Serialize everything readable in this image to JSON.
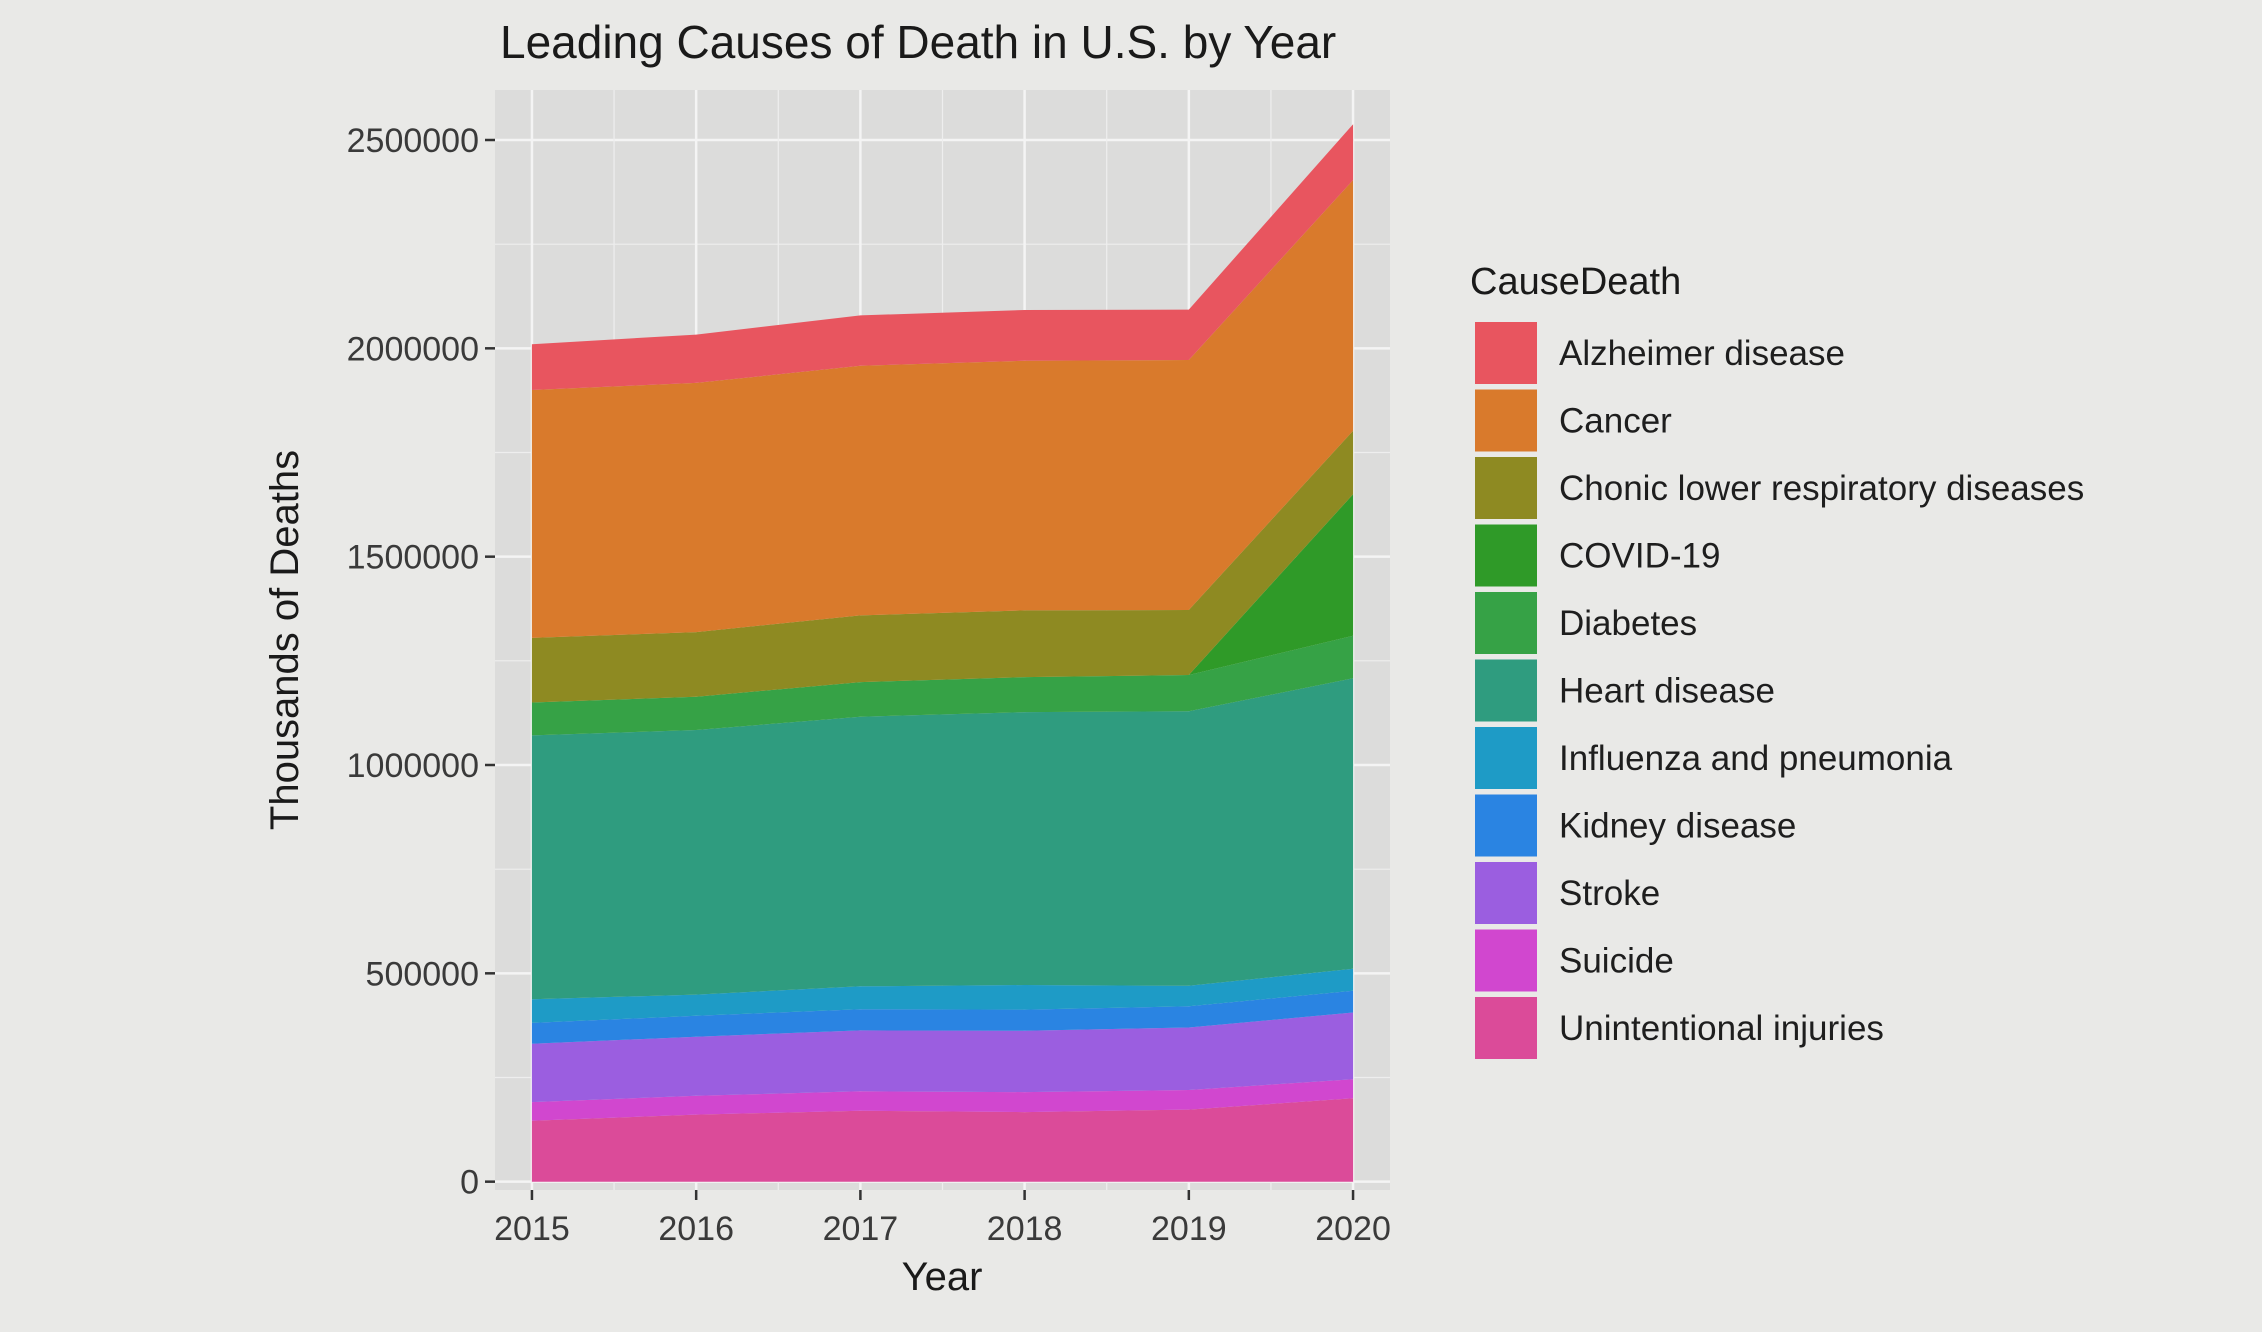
{
  "chart_data": {
    "type": "area",
    "stacked": true,
    "title": "Leading Causes of Death in U.S. by Year",
    "xlabel": "Year",
    "ylabel": "Thousands of Deaths",
    "x": [
      2015,
      2016,
      2017,
      2018,
      2019,
      2020
    ],
    "ylim": [
      -20000,
      2620000
    ],
    "yticks": [
      0,
      500000,
      1000000,
      1500000,
      2000000,
      2500000
    ],
    "ytick_labels": [
      "0",
      "500000",
      "1000000",
      "1500000",
      "2000000",
      "2500000"
    ],
    "xtick_labels": [
      "2015",
      "2016",
      "2017",
      "2018",
      "2019",
      "2020"
    ],
    "grid": true,
    "legend": {
      "title": "CauseDeath",
      "position": "right"
    },
    "series": [
      {
        "name": "Alzheimer disease",
        "color": "#e8555f",
        "values": [
          110000,
          116000,
          121000,
          122000,
          121000,
          134000
        ]
      },
      {
        "name": "Cancer",
        "color": "#d97a2c",
        "values": [
          595000,
          598000,
          599000,
          599000,
          600000,
          602000
        ]
      },
      {
        "name": "Chonic lower respiratory diseases",
        "color": "#8e8a22",
        "values": [
          155000,
          155000,
          160000,
          160000,
          156000,
          152000
        ]
      },
      {
        "name": "COVID-19",
        "color": "#2f9a28",
        "values": [
          0,
          0,
          0,
          0,
          0,
          340000
        ]
      },
      {
        "name": "Diabetes",
        "color": "#36a246",
        "values": [
          79000,
          80000,
          83000,
          84000,
          87000,
          102000
        ]
      },
      {
        "name": "Heart disease",
        "color": "#2f9c7f",
        "values": [
          633000,
          635000,
          647000,
          655000,
          659000,
          697000
        ]
      },
      {
        "name": "Influenza and pneumonia",
        "color": "#1e9bc6",
        "values": [
          57000,
          51000,
          55000,
          59000,
          49000,
          53000
        ]
      },
      {
        "name": "Kidney disease",
        "color": "#2a84e2",
        "values": [
          50000,
          50000,
          51000,
          51000,
          51000,
          52000
        ]
      },
      {
        "name": "Stroke",
        "color": "#9b5ee0",
        "values": [
          140000,
          142000,
          146000,
          147000,
          150000,
          160000
        ]
      },
      {
        "name": "Suicide",
        "color": "#d147cf",
        "values": [
          45000,
          45000,
          47000,
          48000,
          47000,
          46000
        ]
      },
      {
        "name": "Unintentional injuries",
        "color": "#db4b99",
        "values": [
          146000,
          161000,
          170000,
          167000,
          173000,
          200000
        ]
      }
    ]
  }
}
